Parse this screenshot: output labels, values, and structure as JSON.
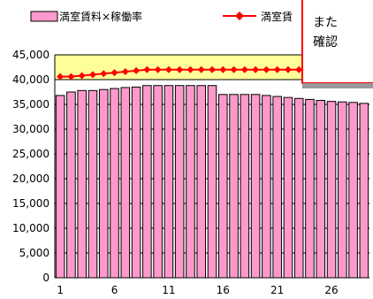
{
  "chart_data": {
    "type": "bar",
    "categories": [
      "1",
      "2",
      "3",
      "4",
      "5",
      "6",
      "7",
      "8",
      "9",
      "10",
      "11",
      "12",
      "13",
      "14",
      "15",
      "16",
      "17",
      "18",
      "19",
      "20",
      "21",
      "22",
      "23",
      "24",
      "25",
      "26",
      "27",
      "28",
      "29"
    ],
    "x_tick_labels": [
      "1",
      "6",
      "11",
      "16",
      "21",
      "26"
    ],
    "series": [
      {
        "name": "満室賃料×稼働率",
        "type": "bar",
        "values": [
          36800,
          37500,
          37800,
          37800,
          38000,
          38200,
          38400,
          38500,
          38800,
          38800,
          38800,
          38800,
          38800,
          38800,
          38800,
          37000,
          37000,
          37000,
          37000,
          36800,
          36600,
          36400,
          36200,
          36000,
          35800,
          35600,
          35500,
          35400,
          35200
        ]
      },
      {
        "name": "満室賃",
        "type": "line",
        "values": [
          40600,
          40600,
          40800,
          41000,
          41200,
          41400,
          41600,
          41800,
          42000,
          42000,
          42000,
          42000,
          42000,
          42000,
          42000,
          42000,
          42000,
          42000,
          42000,
          42000,
          42000,
          42000,
          42000,
          42000,
          42000,
          42000,
          41800,
          41600,
          41400
        ]
      }
    ],
    "ylim": [
      0,
      45000
    ],
    "y_ticks": [
      "0",
      "5,000",
      "10,000",
      "15,000",
      "20,000",
      "25,000",
      "30,000",
      "35,000",
      "40,000",
      "45,000"
    ],
    "legend_position": "top",
    "colors": {
      "bar_fill": "#ff99cc",
      "bar_stroke": "#000000",
      "line": "#ff0000",
      "band_fill": "#ffff99",
      "plot_bg": "#ffffff"
    }
  },
  "legend": {
    "bar_label": "満室賃料×稼働率",
    "line_label": "満室賃"
  },
  "note": {
    "line1": "",
    "line2": "また",
    "line3": "確認"
  }
}
